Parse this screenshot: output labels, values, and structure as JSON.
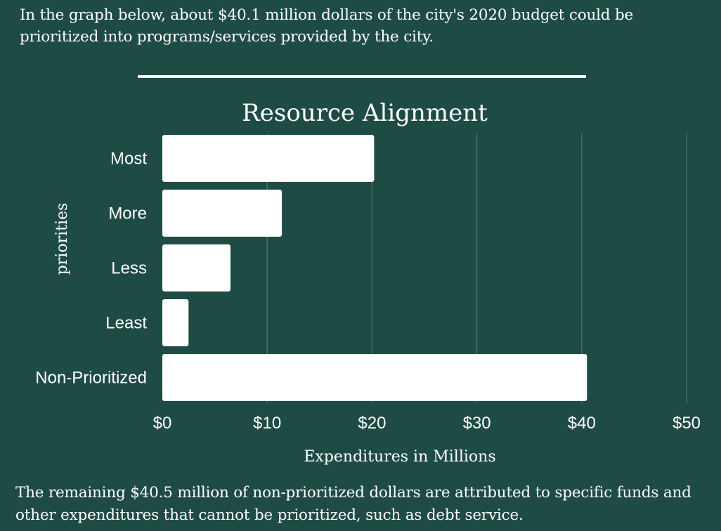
{
  "intro_text": "In the graph below, about $40.1 million dollars of the city's 2020 budget could be prioritized into programs/services provided by the city.",
  "outro_text": "The remaining $40.5 million of non-prioritized dollars are attributed to specific funds and other expenditures that cannot be prioritized, such as debt service.",
  "colors": {
    "background": "#1f4b45",
    "bar": "#ffffff",
    "gridline": "#4f7a73",
    "text": "#ffffff"
  },
  "chart_data": {
    "type": "bar",
    "orientation": "horizontal",
    "title": "Resource Alignment",
    "xlabel": "Expenditures in Millions",
    "ylabel": "priorities",
    "categories": [
      "Most",
      "More",
      "Less",
      "Least",
      "Non-Prioritized"
    ],
    "values": [
      20.2,
      11.4,
      6.5,
      2.5,
      40.5
    ],
    "xlim": [
      0,
      50
    ],
    "x_ticks": [
      0,
      10,
      20,
      30,
      40,
      50
    ],
    "x_tick_labels": [
      "$0",
      "$10",
      "$20",
      "$30",
      "$40",
      "$50"
    ],
    "grid": "vertical",
    "legend": "none"
  }
}
